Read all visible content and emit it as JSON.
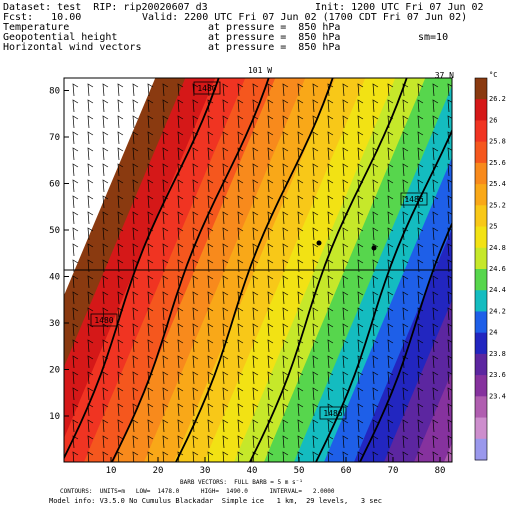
{
  "header": {
    "dataset_line": "Dataset: test  RIP: rip20020607 d3",
    "init_line": "Init: 1200 UTC Fri 07 Jun 02",
    "fcst_line": "Fcst:   10.00",
    "valid_line": "Valid: 2200 UTC Fri 07 Jun 02 (1700 CDT Fri 07 Jun 02)",
    "field_1_name": "Temperature",
    "field_1_pressure": "at pressure =  850 hPa",
    "field_2_name": "Geopotential height",
    "field_2_pressure": "at pressure =  850 hPa",
    "field_2_smoothing": "sm=10",
    "field_3_name": "Horizontal wind vectors",
    "field_3_pressure": "at pressure =  850 hPa"
  },
  "map": {
    "top_longitude_label": "101 W",
    "right_latitude_label": "37 N",
    "x_ticks": [
      "10",
      "20",
      "30",
      "40",
      "50",
      "60",
      "70",
      "80"
    ],
    "y_ticks": [
      "10",
      "20",
      "30",
      "40",
      "50",
      "60",
      "70",
      "80"
    ],
    "contour_labels": [
      "1480",
      "1480",
      "1486",
      "1486"
    ],
    "colorbar_unit": "°C",
    "colorbar_labels": [
      "26.2",
      "26",
      "25.8",
      "25.6",
      "25.4",
      "25.2",
      "25",
      "24.8",
      "24.6",
      "24.4",
      "24.2",
      "24",
      "23.8",
      "23.6",
      "23.4"
    ],
    "colorbar_colors": [
      "#8a3a10",
      "#d51818",
      "#f03422",
      "#f5571e",
      "#f88a1c",
      "#f9a818",
      "#f8c818",
      "#f2e214",
      "#c6e82a",
      "#57d64d",
      "#14bcc0",
      "#1e5fe8",
      "#2226c0",
      "#5c26a0",
      "#86329e",
      "#b05eb0",
      "#cd8ecd",
      "#9a98ec"
    ]
  },
  "footer": {
    "barb_line": "BARB VECTORS:  FULL BARB = 5 m s⁻¹",
    "contours_line": "CONTOURS:  UNITS=m   LOW=  1478.0      HIGH=  1490.0      INTERVAL=   2.0000",
    "model_info_line": "Model info: V3.5.0 No Cumulus Blackadar  Simple ice   1 km,  29 levels,   3 sec"
  }
}
